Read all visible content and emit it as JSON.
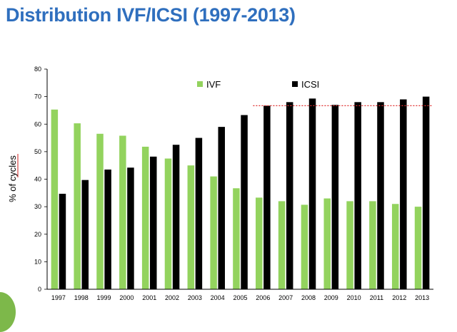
{
  "slide": {
    "title": "Distribution IVF/ICSI (1997-2013)"
  },
  "colors": {
    "title": "#2f6fbe",
    "ivf": "#93d35e",
    "icsi": "#000000",
    "reference_line": "#e03030",
    "accent_blob": "#7db84a"
  },
  "chart_data": {
    "type": "bar",
    "title": "",
    "xlabel": "",
    "ylabel": "% of cycles",
    "ylim": [
      0,
      80
    ],
    "yticks": [
      0,
      10,
      20,
      30,
      40,
      50,
      60,
      70,
      80
    ],
    "categories": [
      "1997",
      "1998",
      "1999",
      "2000",
      "2001",
      "2002",
      "2003",
      "2004",
      "2005",
      "2006",
      "2007",
      "2008",
      "2009",
      "2010",
      "2011",
      "2012",
      "2013"
    ],
    "series": [
      {
        "name": "IVF",
        "color": "#93d35e",
        "values": [
          65.3,
          60.3,
          56.5,
          55.8,
          51.8,
          47.5,
          45,
          41,
          36.7,
          33.3,
          32,
          30.7,
          33,
          32,
          32,
          31,
          30
        ]
      },
      {
        "name": "ICSI",
        "color": "#000000",
        "values": [
          34.7,
          39.7,
          43.5,
          44.2,
          48.2,
          52.5,
          55,
          59,
          63.3,
          66.7,
          68,
          69.3,
          67,
          68,
          68,
          69,
          70
        ]
      }
    ],
    "reference_line": {
      "value": 66.7,
      "from_category": "2006",
      "to_category": "2013",
      "style": "dotted"
    },
    "legend": {
      "position": "top",
      "entries": [
        "IVF",
        "ICSI"
      ]
    }
  }
}
